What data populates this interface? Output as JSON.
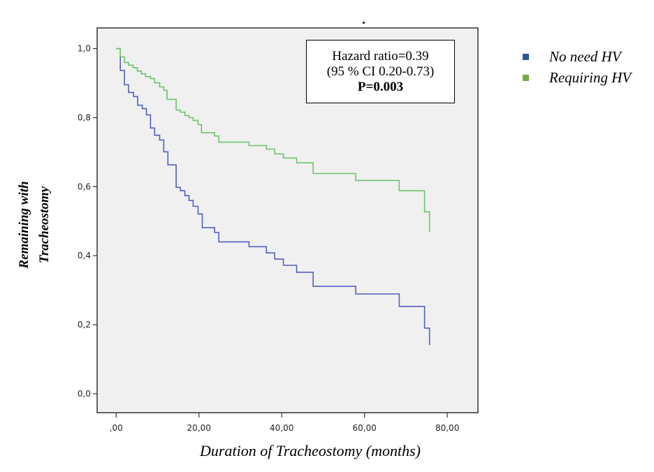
{
  "chart_data": {
    "type": "line",
    "subtype": "kaplan-meier-step",
    "title": ".",
    "xlabel": "Duration of Tracheostomy (months)",
    "ylabel_lines": [
      "Remaining with",
      "Tracheostomy"
    ],
    "xlim": [
      -4.6,
      87.4
    ],
    "ylim": [
      -0.055,
      1.06
    ],
    "x_ticks": [
      0,
      20,
      40,
      60,
      80
    ],
    "x_tick_labels": [
      ",00",
      "20,00",
      "40,00",
      "60,00",
      "80,00"
    ],
    "y_ticks": [
      0.0,
      0.2,
      0.4,
      0.6,
      0.8,
      1.0
    ],
    "y_tick_labels": [
      "0,0",
      "0,2",
      "0,4",
      "0,6",
      "0,8",
      "1,0"
    ],
    "grid": false,
    "plot_background": "#f0f0f0",
    "legend_position": "outside-right-top",
    "series": [
      {
        "name": "No need HV",
        "color": "#5060c0",
        "legend_color": "#2f5597",
        "x": [
          0,
          1.0,
          2.0,
          3.0,
          4.2,
          5.2,
          6.3,
          7.3,
          8.3,
          9.3,
          10.5,
          11.5,
          12.5,
          14.5,
          15.5,
          16.6,
          17.6,
          18.6,
          19.8,
          20.8,
          23.8,
          24.8,
          32.1,
          36.3,
          38.3,
          40.4,
          43.6,
          47.6,
          57.9,
          68.4,
          74.5,
          75.7
        ],
        "y": [
          1.0,
          0.937,
          0.895,
          0.873,
          0.861,
          0.836,
          0.826,
          0.808,
          0.77,
          0.749,
          0.735,
          0.701,
          0.663,
          0.598,
          0.588,
          0.574,
          0.56,
          0.543,
          0.521,
          0.481,
          0.467,
          0.44,
          0.426,
          0.408,
          0.39,
          0.372,
          0.352,
          0.311,
          0.289,
          0.253,
          0.19,
          0.141
        ]
      },
      {
        "name": "Requiring HV",
        "color": "#6cc46c",
        "legend_color": "#70ad47",
        "x": [
          0,
          1.0,
          2.0,
          3.0,
          4.1,
          5.1,
          6.1,
          7.1,
          8.3,
          9.3,
          10.5,
          11.5,
          12.3,
          14.5,
          15.5,
          16.6,
          17.6,
          18.6,
          19.8,
          20.6,
          23.8,
          24.8,
          32.1,
          36.3,
          38.3,
          40.4,
          43.6,
          47.6,
          57.9,
          68.4,
          74.5,
          75.7
        ],
        "y": [
          1.0,
          0.976,
          0.96,
          0.952,
          0.945,
          0.935,
          0.927,
          0.919,
          0.913,
          0.901,
          0.889,
          0.879,
          0.853,
          0.822,
          0.816,
          0.806,
          0.8,
          0.792,
          0.78,
          0.756,
          0.747,
          0.729,
          0.719,
          0.709,
          0.695,
          0.683,
          0.669,
          0.638,
          0.618,
          0.588,
          0.527,
          0.469
        ]
      }
    ],
    "annotation": {
      "line1": "Hazard ratio=0.39",
      "line2": "(95 % CI 0.20-0.73)",
      "line3": "P=0.003"
    }
  },
  "legend": {
    "items": [
      {
        "label": "No need HV",
        "color": "#2f5597"
      },
      {
        "label": "Requiring HV",
        "color": "#70ad47"
      }
    ]
  }
}
